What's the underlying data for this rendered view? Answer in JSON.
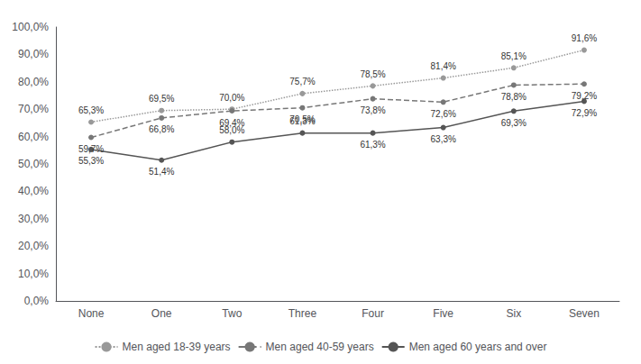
{
  "chart_data": {
    "type": "line",
    "categories": [
      "None",
      "One",
      "Two",
      "Three",
      "Four",
      "Five",
      "Six",
      "Seven"
    ],
    "series": [
      {
        "name": "Men aged 18-39 years",
        "color": "#999999",
        "line_style": "dotted",
        "marker": "circle",
        "values": [
          65.3,
          69.5,
          70.0,
          75.7,
          78.5,
          81.4,
          85.1,
          91.6
        ],
        "value_labels": [
          "65,3%",
          "69,5%",
          "70,0%",
          "75,7%",
          "78,5%",
          "81,4%",
          "85,1%",
          "91,6%"
        ]
      },
      {
        "name": "Men aged 40-59 years",
        "color": "#777777",
        "line_style": "dashed",
        "marker": "circle",
        "values": [
          59.7,
          66.8,
          69.4,
          70.5,
          73.8,
          72.6,
          78.8,
          79.2
        ],
        "value_labels": [
          "59,7%",
          "66,8%",
          "69,4%",
          "70,5%",
          "73,8%",
          "72,6%",
          "78,8%",
          "79,2%"
        ]
      },
      {
        "name": "Men aged 60 years and over",
        "color": "#555555",
        "line_style": "solid",
        "marker": "circle",
        "values": [
          55.3,
          51.4,
          58.0,
          61.3,
          61.3,
          63.3,
          69.3,
          72.9
        ],
        "value_labels": [
          "55,3%",
          "51,4%",
          "58,0%",
          "61,3%",
          "61,3%",
          "63,3%",
          "69,3%",
          "72,9%"
        ]
      }
    ],
    "ylim": [
      0,
      100
    ],
    "yticks": [
      {
        "value": 0,
        "label": "0,0%"
      },
      {
        "value": 10,
        "label": "10,0%"
      },
      {
        "value": 20,
        "label": "20,0%"
      },
      {
        "value": 30,
        "label": "30,0%"
      },
      {
        "value": 40,
        "label": "40,0%"
      },
      {
        "value": 50,
        "label": "50,0%"
      },
      {
        "value": 60,
        "label": "60,0%"
      },
      {
        "value": 70,
        "label": "70,0%"
      },
      {
        "value": 80,
        "label": "80,0%"
      },
      {
        "value": 90,
        "label": "90,0%"
      },
      {
        "value": 100,
        "label": "100,0%"
      }
    ],
    "grid": false,
    "legend": "bottom",
    "data_labels": true
  }
}
